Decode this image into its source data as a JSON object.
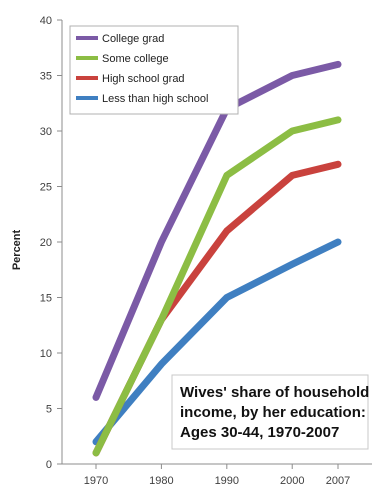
{
  "chart_data": {
    "type": "line",
    "title": "",
    "xlabel": "",
    "ylabel": "Percent",
    "x": [
      1970,
      1980,
      1990,
      2000,
      2007
    ],
    "x_tick_labels": [
      "1970",
      "1980",
      "1990",
      "2000",
      "2007"
    ],
    "ylim": [
      0,
      40
    ],
    "y_ticks": [
      0,
      5,
      10,
      15,
      20,
      25,
      30,
      35,
      40
    ],
    "grid": false,
    "legend_position": "top-left",
    "series": [
      {
        "name": "College grad",
        "color": "#7b5aa6",
        "values": [
          6,
          20,
          32,
          35,
          36
        ]
      },
      {
        "name": "Some college",
        "color": "#8cbd44",
        "values": [
          1,
          13,
          26,
          30,
          31
        ]
      },
      {
        "name": "High school grad",
        "color": "#c9423d",
        "values": [
          1,
          13,
          21,
          26,
          27
        ]
      },
      {
        "name": "Less than high school",
        "color": "#3f7fc1",
        "values": [
          2,
          9,
          15,
          18,
          20
        ]
      }
    ],
    "annotation": {
      "lines": [
        "Wives' share of household",
        "income, by her education:",
        "Ages 30-44, 1970-2007"
      ]
    }
  }
}
